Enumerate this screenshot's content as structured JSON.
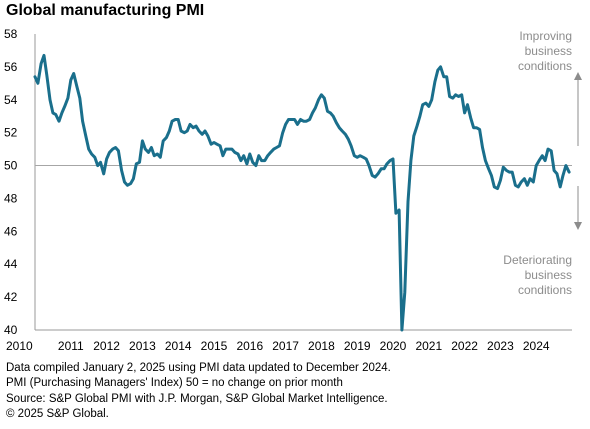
{
  "chart_data": {
    "type": "line",
    "title": "Global manufacturing PMI",
    "xlabel": "",
    "ylabel": "",
    "ylim": [
      40,
      58
    ],
    "xlim": [
      2010.0,
      2025.0
    ],
    "y_ticks": [
      40,
      42,
      44,
      46,
      48,
      50,
      52,
      54,
      56,
      58
    ],
    "x_ticks": [
      "2010",
      "2011",
      "2012",
      "2013",
      "2014",
      "2015",
      "2016",
      "2017",
      "2018",
      "2019",
      "2020",
      "2021",
      "2022",
      "2023",
      "2024"
    ],
    "reference_line": 50,
    "grid": false,
    "colors": {
      "series": "#1a6f8c",
      "reference": "#a6a6a6",
      "annotation": "#8c8c8c",
      "axis": "#9a9a9a"
    },
    "annotations": {
      "improving": [
        "Improving",
        "business",
        "conditions"
      ],
      "deteriorating": [
        "Deteriorating",
        "business",
        "conditions"
      ]
    },
    "series": [
      {
        "x": [
          2010.0,
          2010.08,
          2010.17,
          2010.25,
          2010.33,
          2010.42,
          2010.5,
          2010.58,
          2010.67,
          2010.75,
          2010.83,
          2010.92,
          2011.0,
          2011.08,
          2011.17,
          2011.25,
          2011.33,
          2011.42,
          2011.5,
          2011.58,
          2011.67,
          2011.75,
          2011.83,
          2011.92,
          2012.0,
          2012.08,
          2012.17,
          2012.25,
          2012.33,
          2012.42,
          2012.5,
          2012.58,
          2012.67,
          2012.75,
          2012.83,
          2012.92,
          2013.0,
          2013.08,
          2013.17,
          2013.25,
          2013.33,
          2013.42,
          2013.5,
          2013.58,
          2013.67,
          2013.75,
          2013.83,
          2013.92,
          2014.0,
          2014.08,
          2014.17,
          2014.25,
          2014.33,
          2014.42,
          2014.5,
          2014.58,
          2014.67,
          2014.75,
          2014.83,
          2014.92,
          2015.0,
          2015.08,
          2015.17,
          2015.25,
          2015.33,
          2015.42,
          2015.5,
          2015.58,
          2015.67,
          2015.75,
          2015.83,
          2015.92,
          2016.0,
          2016.08,
          2016.17,
          2016.25,
          2016.33,
          2016.42,
          2016.5,
          2016.58,
          2016.67,
          2016.75,
          2016.83,
          2016.92,
          2017.0,
          2017.08,
          2017.17,
          2017.25,
          2017.33,
          2017.42,
          2017.5,
          2017.58,
          2017.67,
          2017.75,
          2017.83,
          2017.92,
          2018.0,
          2018.08,
          2018.17,
          2018.25,
          2018.33,
          2018.42,
          2018.5,
          2018.58,
          2018.67,
          2018.75,
          2018.83,
          2018.92,
          2019.0,
          2019.08,
          2019.17,
          2019.25,
          2019.33,
          2019.42,
          2019.5,
          2019.58,
          2019.67,
          2019.75,
          2019.83,
          2019.92,
          2020.0,
          2020.08,
          2020.17,
          2020.25,
          2020.33,
          2020.42,
          2020.5,
          2020.58,
          2020.67,
          2020.75,
          2020.83,
          2020.92,
          2021.0,
          2021.08,
          2021.17,
          2021.25,
          2021.33,
          2021.42,
          2021.5,
          2021.58,
          2021.67,
          2021.75,
          2021.83,
          2021.92,
          2022.0,
          2022.08,
          2022.17,
          2022.25,
          2022.33,
          2022.42,
          2022.5,
          2022.58,
          2022.67,
          2022.75,
          2022.83,
          2022.92,
          2023.0,
          2023.08,
          2023.17,
          2023.25,
          2023.33,
          2023.42,
          2023.5,
          2023.58,
          2023.67,
          2023.75,
          2023.83,
          2023.92,
          2024.0,
          2024.08,
          2024.17,
          2024.25,
          2024.33,
          2024.42,
          2024.5,
          2024.58,
          2024.67,
          2024.75,
          2024.83,
          2024.92
        ],
        "values": [
          55.4,
          55.0,
          56.2,
          56.7,
          55.5,
          54.0,
          53.2,
          53.1,
          52.7,
          53.2,
          53.6,
          54.1,
          55.2,
          55.6,
          54.8,
          54.1,
          52.7,
          51.8,
          51.0,
          50.7,
          50.5,
          50.0,
          50.2,
          49.5,
          50.4,
          50.8,
          51.0,
          51.1,
          50.9,
          49.7,
          49.0,
          48.8,
          48.9,
          49.2,
          50.1,
          50.2,
          51.5,
          51.0,
          50.8,
          51.1,
          50.6,
          50.7,
          50.5,
          51.5,
          51.7,
          52.1,
          52.7,
          52.8,
          52.8,
          52.1,
          52.0,
          52.1,
          52.5,
          52.3,
          52.4,
          52.1,
          51.9,
          52.1,
          51.8,
          51.3,
          51.4,
          51.3,
          51.2,
          50.6,
          51.0,
          51.0,
          51.0,
          50.8,
          50.7,
          50.3,
          50.6,
          50.1,
          50.7,
          50.2,
          50.0,
          50.6,
          50.3,
          50.3,
          50.6,
          50.8,
          51.0,
          51.1,
          51.2,
          52.0,
          52.5,
          52.8,
          52.8,
          52.8,
          52.5,
          52.8,
          52.7,
          52.7,
          52.8,
          53.2,
          53.5,
          54.0,
          54.3,
          54.1,
          53.3,
          53.2,
          53.0,
          52.6,
          52.3,
          52.1,
          51.9,
          51.6,
          51.2,
          50.6,
          50.5,
          50.6,
          50.5,
          50.4,
          50.0,
          49.4,
          49.3,
          49.5,
          49.8,
          49.8,
          50.1,
          50.3,
          50.4,
          47.1,
          47.3,
          40.0,
          42.3,
          47.8,
          50.3,
          51.8,
          52.4,
          53.0,
          53.7,
          53.8,
          53.6,
          54.0,
          55.1,
          55.8,
          56.0,
          55.4,
          55.4,
          54.2,
          54.1,
          54.3,
          54.2,
          54.3,
          53.2,
          53.7,
          52.9,
          52.3,
          52.3,
          52.2,
          51.1,
          50.3,
          49.8,
          49.4,
          48.7,
          48.6,
          49.1,
          49.9,
          49.7,
          49.6,
          49.6,
          48.8,
          48.7,
          49.0,
          49.2,
          48.8,
          49.2,
          49.0,
          50.0,
          50.3,
          50.6,
          50.3,
          51.0,
          50.9,
          49.7,
          49.5,
          48.7,
          49.4,
          50.0,
          49.6
        ]
      }
    ]
  },
  "footnotes": {
    "line1": "Data compiled January 2, 2025 using PMI data updated to December 2024.",
    "line2": "PMI (Purchasing Managers' Index) 50 = no change on prior month",
    "line3": "Source: S&P Global  PMI with J.P. Morgan, S&P Global Market Intelligence.",
    "line4": "© 2025 S&P Global."
  }
}
